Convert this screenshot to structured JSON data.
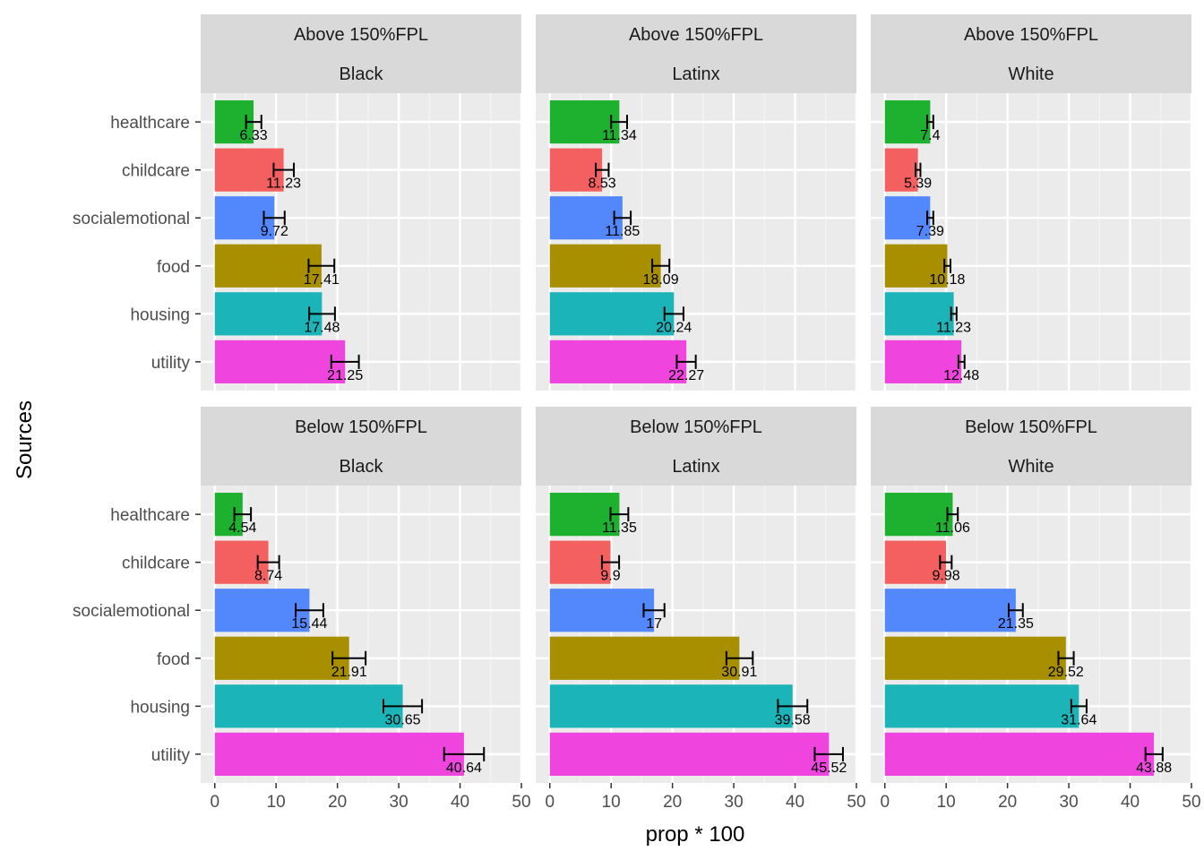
{
  "chart_data": {
    "type": "bar",
    "orientation": "horizontal",
    "xlabel": "prop * 100",
    "ylabel": "Sources",
    "categories": [
      "healthcare",
      "childcare",
      "socialemotional",
      "food",
      "housing",
      "utility"
    ],
    "category_colors": {
      "healthcare": "#1DB12F",
      "childcare": "#F4605F",
      "socialemotional": "#5388FC",
      "food": "#A78F00",
      "housing": "#1BB4B8",
      "utility": "#EF44DD"
    },
    "x_ticks": [
      "0",
      "10",
      "20",
      "30",
      "40",
      "50"
    ],
    "xlim": [
      -2.3,
      50
    ],
    "grid": true,
    "panels": [
      {
        "fpl": "Above 150%FPL",
        "group": "Black",
        "values": [
          6.33,
          11.23,
          9.72,
          17.41,
          17.48,
          21.25
        ],
        "labels": [
          "6.33",
          "11.23",
          "9.72",
          "17.41",
          "17.48",
          "21.25"
        ],
        "ci_low": [
          5.1,
          9.6,
          8.0,
          15.3,
          15.4,
          19.0
        ],
        "ci_high": [
          7.6,
          12.9,
          11.4,
          19.5,
          19.6,
          23.5
        ]
      },
      {
        "fpl": "Above 150%FPL",
        "group": "Latinx",
        "values": [
          11.34,
          8.53,
          11.85,
          18.09,
          20.24,
          22.27
        ],
        "labels": [
          "11.34",
          "8.53",
          "11.85",
          "18.09",
          "20.24",
          "22.27"
        ],
        "ci_low": [
          10.0,
          7.5,
          10.5,
          16.7,
          18.7,
          20.7
        ],
        "ci_high": [
          12.6,
          9.6,
          13.2,
          19.5,
          21.8,
          23.8
        ]
      },
      {
        "fpl": "Above 150%FPL",
        "group": "White",
        "values": [
          7.4,
          5.39,
          7.39,
          10.18,
          11.23,
          12.48
        ],
        "labels": [
          "7.4",
          "5.39",
          "7.39",
          "10.18",
          "11.23",
          "12.48"
        ],
        "ci_low": [
          6.9,
          5.0,
          6.9,
          9.7,
          10.8,
          12.0
        ],
        "ci_high": [
          7.9,
          5.8,
          7.9,
          10.7,
          11.7,
          13.0
        ]
      },
      {
        "fpl": "Below 150%FPL",
        "group": "Black",
        "values": [
          4.54,
          8.74,
          15.44,
          21.91,
          30.65,
          40.64
        ],
        "labels": [
          "4.54",
          "8.74",
          "15.44",
          "21.91",
          "30.65",
          "40.64"
        ],
        "ci_low": [
          3.2,
          7.0,
          13.2,
          19.2,
          27.5,
          37.4
        ],
        "ci_high": [
          5.9,
          10.5,
          17.7,
          24.6,
          33.8,
          43.9
        ]
      },
      {
        "fpl": "Below 150%FPL",
        "group": "Latinx",
        "values": [
          11.35,
          9.9,
          17,
          30.91,
          39.58,
          45.52
        ],
        "labels": [
          "11.35",
          "9.9",
          "17",
          "30.91",
          "39.58",
          "45.52"
        ],
        "ci_low": [
          9.9,
          8.5,
          15.3,
          28.8,
          37.2,
          43.2
        ],
        "ci_high": [
          12.8,
          11.3,
          18.7,
          33.1,
          42.0,
          47.8
        ]
      },
      {
        "fpl": "Below 150%FPL",
        "group": "White",
        "values": [
          11.06,
          9.98,
          21.35,
          29.52,
          31.64,
          43.88
        ],
        "labels": [
          "11.06",
          "9.98",
          "21.35",
          "29.52",
          "31.64",
          "43.88"
        ],
        "ci_low": [
          10.2,
          9.0,
          20.2,
          28.3,
          30.4,
          42.5
        ],
        "ci_high": [
          11.9,
          10.9,
          22.5,
          30.8,
          32.9,
          45.3
        ]
      }
    ]
  }
}
